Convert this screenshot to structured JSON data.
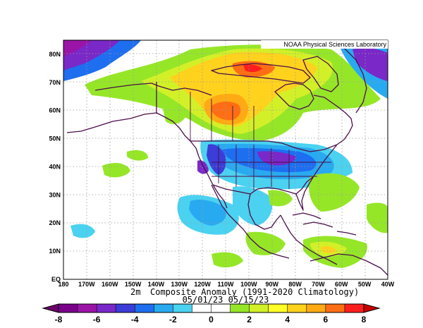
{
  "map": {
    "credit": "NOAA Physical Sciences Laboratory",
    "variable": "2m",
    "title": "Composite Anomaly (1991-2020 Climatology)",
    "dates": "05/01/23 05/15/23",
    "lat_labels": [
      "EQ",
      "10N",
      "20N",
      "30N",
      "40N",
      "50N",
      "60N",
      "70N",
      "80N"
    ],
    "lon_labels": [
      "180",
      "170W",
      "160W",
      "150W",
      "140W",
      "130W",
      "120W",
      "110W",
      "100W",
      "90W",
      "80W",
      "70W",
      "60W",
      "50W",
      "40W"
    ],
    "extent": {
      "lon": [
        -180,
        -40
      ],
      "lat": [
        0,
        85
      ]
    },
    "colorbar": {
      "tick_labels": [
        "-8",
        "-6",
        "-4",
        "-2",
        "0",
        "2",
        "4",
        "6",
        "8"
      ],
      "range": [
        -8,
        8
      ],
      "step": 1,
      "colors": [
        "#7a008a",
        "#9b14a8",
        "#7a28c8",
        "#3c3cd8",
        "#1e6ef0",
        "#28aaf0",
        "#4ad2f0",
        "#ffffff",
        "#ffffff",
        "#96e628",
        "#d2f028",
        "#ffff28",
        "#ffd21e",
        "#ffaa14",
        "#ff6e14",
        "#ff1e1e"
      ],
      "below_color": "#6a006a",
      "above_color": "#c80000"
    }
  }
}
